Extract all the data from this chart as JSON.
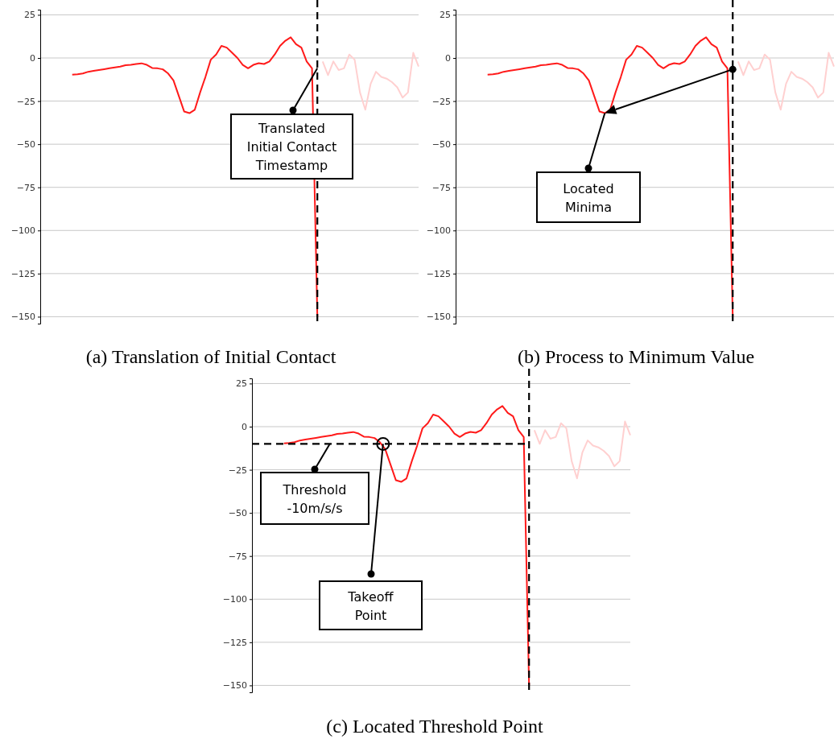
{
  "chart_data": [
    {
      "type": "line",
      "title": "(a) Translation of Initial Contact",
      "categories": [
        null,
        null,
        null,
        null,
        null,
        null,
        null,
        null,
        null,
        null,
        null,
        null,
        null,
        null,
        null,
        null,
        null,
        null,
        null,
        null,
        null,
        null,
        null,
        null,
        null,
        null,
        null,
        null,
        null,
        null,
        null,
        null,
        null,
        null,
        null,
        null,
        null,
        null,
        null,
        null,
        null,
        null,
        null,
        null,
        null,
        null,
        null,
        null,
        null,
        null,
        null,
        null,
        null,
        null,
        null,
        null,
        null,
        null,
        null,
        null,
        null,
        null,
        null,
        null,
        null,
        null,
        null,
        null,
        null,
        null,
        null,
        null
      ],
      "series": [
        {
          "color": "#ff1a1a",
          "values": [
            null,
            null,
            null,
            null,
            null,
            null,
            -9.7,
            -9.5,
            -9,
            -8,
            -7.5,
            -7,
            -6.5,
            -6,
            -5.5,
            -5,
            -4.2,
            -4,
            -3.5,
            -3.1,
            -4,
            -5.8,
            -6,
            -6.6,
            -9,
            -13,
            -22,
            -31,
            -32,
            -30,
            -20,
            -11,
            -1,
            2,
            7,
            6,
            3,
            0,
            -4,
            -6,
            -4,
            -3,
            -3.5,
            -2,
            2,
            7,
            10,
            12,
            8,
            6,
            -2,
            -6,
            -150,
            null,
            null,
            null,
            null,
            null,
            null,
            null,
            null,
            null,
            null,
            null,
            null,
            null,
            null,
            null,
            null,
            null,
            null,
            null
          ]
        },
        {
          "color": "#ffd0d0",
          "values": [
            null,
            null,
            null,
            null,
            null,
            null,
            null,
            null,
            null,
            null,
            null,
            null,
            null,
            null,
            null,
            null,
            null,
            null,
            null,
            null,
            null,
            null,
            null,
            null,
            null,
            null,
            null,
            null,
            null,
            null,
            null,
            null,
            null,
            null,
            null,
            null,
            null,
            null,
            null,
            null,
            null,
            null,
            null,
            null,
            null,
            null,
            null,
            null,
            null,
            null,
            null,
            null,
            null,
            -2,
            -10,
            -2,
            -7,
            -6,
            2,
            -1,
            -20,
            -30,
            -15,
            -8,
            -11,
            -12,
            -14,
            -17,
            -23,
            -20,
            3,
            -5
          ]
        }
      ],
      "ylim": [
        -154,
        28
      ],
      "yticks": [
        -150,
        -125,
        -100,
        -75,
        -50,
        -25,
        0,
        25
      ],
      "grid": "y",
      "tick_labels": "y",
      "annotations": [
        "Translated\nInitial Contact\nTimestamp"
      ]
    },
    {
      "type": "line",
      "title": "(b) Process to Minimum Value",
      "categories": [
        null,
        null,
        null,
        null,
        null,
        null,
        null,
        null,
        null,
        null,
        null,
        null,
        null,
        null,
        null,
        null,
        null,
        null,
        null,
        null,
        null,
        null,
        null,
        null,
        null,
        null,
        null,
        null,
        null,
        null,
        null,
        null,
        null,
        null,
        null,
        null,
        null,
        null,
        null,
        null,
        null,
        null,
        null,
        null,
        null,
        null,
        null,
        null,
        null,
        null,
        null,
        null,
        null,
        null,
        null,
        null,
        null,
        null,
        null,
        null,
        null,
        null,
        null,
        null,
        null,
        null,
        null,
        null,
        null,
        null,
        null,
        null
      ],
      "series": [
        {
          "color": "#ff1a1a",
          "values": [
            null,
            null,
            null,
            null,
            null,
            null,
            -9.7,
            -9.5,
            -9,
            -8,
            -7.5,
            -7,
            -6.5,
            -6,
            -5.5,
            -5,
            -4.2,
            -4,
            -3.5,
            -3.1,
            -4,
            -5.8,
            -6,
            -6.6,
            -9,
            -13,
            -22,
            -31,
            -32,
            -30,
            -20,
            -11,
            -1,
            2,
            7,
            6,
            3,
            0,
            -4,
            -6,
            -4,
            -3,
            -3.5,
            -2,
            2,
            7,
            10,
            12,
            8,
            6,
            -2,
            -6,
            -150,
            null,
            null,
            null,
            null,
            null,
            null,
            null,
            null,
            null,
            null,
            null,
            null,
            null,
            null,
            null,
            null,
            null,
            null,
            null
          ]
        },
        {
          "color": "#ffd0d0",
          "values": [
            null,
            null,
            null,
            null,
            null,
            null,
            null,
            null,
            null,
            null,
            null,
            null,
            null,
            null,
            null,
            null,
            null,
            null,
            null,
            null,
            null,
            null,
            null,
            null,
            null,
            null,
            null,
            null,
            null,
            null,
            null,
            null,
            null,
            null,
            null,
            null,
            null,
            null,
            null,
            null,
            null,
            null,
            null,
            null,
            null,
            null,
            null,
            null,
            null,
            null,
            null,
            null,
            null,
            -2,
            -10,
            -2,
            -7,
            -6,
            2,
            -1,
            -20,
            -30,
            -15,
            -8,
            -11,
            -12,
            -14,
            -17,
            -23,
            -20,
            3,
            -5
          ]
        }
      ],
      "ylim": [
        -154,
        28
      ],
      "yticks": [
        -150,
        -125,
        -100,
        -75,
        -50,
        -25,
        0,
        25
      ],
      "grid": "y",
      "tick_labels": "y",
      "annotations": [
        "Located\nMinima"
      ]
    },
    {
      "type": "line",
      "title": "(c) Located Threshold Point",
      "categories": [
        null,
        null,
        null,
        null,
        null,
        null,
        null,
        null,
        null,
        null,
        null,
        null,
        null,
        null,
        null,
        null,
        null,
        null,
        null,
        null,
        null,
        null,
        null,
        null,
        null,
        null,
        null,
        null,
        null,
        null,
        null,
        null,
        null,
        null,
        null,
        null,
        null,
        null,
        null,
        null,
        null,
        null,
        null,
        null,
        null,
        null,
        null,
        null,
        null,
        null,
        null,
        null,
        null,
        null,
        null,
        null,
        null,
        null,
        null,
        null,
        null,
        null,
        null,
        null,
        null,
        null,
        null,
        null,
        null,
        null,
        null,
        null
      ],
      "series": [
        {
          "color": "#ff1a1a",
          "values": [
            null,
            null,
            null,
            null,
            null,
            null,
            -9.7,
            -9.5,
            -9,
            -8,
            -7.5,
            -7,
            -6.5,
            -6,
            -5.5,
            -5,
            -4.2,
            -4,
            -3.5,
            -3.1,
            -4,
            -5.8,
            -6,
            -6.6,
            -9,
            -13,
            -22,
            -31,
            -32,
            -30,
            -20,
            -11,
            -1,
            2,
            7,
            6,
            3,
            0,
            -4,
            -6,
            -4,
            -3,
            -3.5,
            -2,
            2,
            7,
            10,
            12,
            8,
            6,
            -2,
            -6,
            -150,
            null,
            null,
            null,
            null,
            null,
            null,
            null,
            null,
            null,
            null,
            null,
            null,
            null,
            null,
            null,
            null,
            null,
            null,
            null
          ]
        },
        {
          "color": "#ffd0d0",
          "values": [
            null,
            null,
            null,
            null,
            null,
            null,
            null,
            null,
            null,
            null,
            null,
            null,
            null,
            null,
            null,
            null,
            null,
            null,
            null,
            null,
            null,
            null,
            null,
            null,
            null,
            null,
            null,
            null,
            null,
            null,
            null,
            null,
            null,
            null,
            null,
            null,
            null,
            null,
            null,
            null,
            null,
            null,
            null,
            null,
            null,
            null,
            null,
            null,
            null,
            null,
            null,
            null,
            null,
            -2,
            -10,
            -2,
            -7,
            -6,
            2,
            -1,
            -20,
            -30,
            -15,
            -8,
            -11,
            -12,
            -14,
            -17,
            -23,
            -20,
            3,
            -5
          ]
        }
      ],
      "ylim": [
        -154,
        28
      ],
      "yticks": [
        -150,
        -125,
        -100,
        -75,
        -50,
        -25,
        0,
        25
      ],
      "grid": "y",
      "tick_labels": "y",
      "ref_lines": [
        {
          "axis": "y",
          "value": -10,
          "color": "#000000",
          "line_style": "dashed"
        }
      ],
      "annotations": [
        "Threshold\n-10m/s/s",
        "Takeoff\nPoint"
      ]
    }
  ]
}
